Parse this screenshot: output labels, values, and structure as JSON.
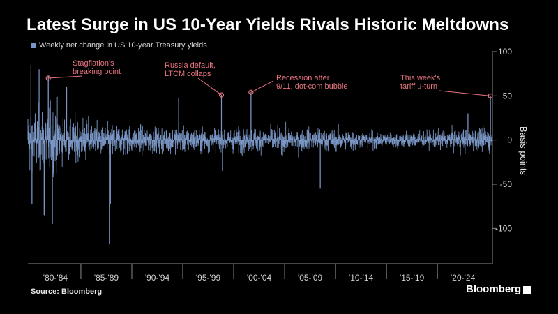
{
  "header": {
    "title": "Latest Surge in US 10-Year Yields Rivals Historic Meltdowns"
  },
  "legend": {
    "label": "Weekly net change in US 10-year Treasury yields"
  },
  "footer": {
    "source": "Source: Bloomberg",
    "brand": "Bloomberg"
  },
  "colors": {
    "bar": "#7a96c4",
    "annotation": "#e8737f",
    "background": "#000000"
  },
  "chart_data": {
    "type": "bar",
    "title": "Latest Surge in US 10-Year Yields Rivals Historic Meltdowns",
    "ylabel": "Basis points",
    "ylim": [
      -140,
      100
    ],
    "y_ticks": [
      100,
      50,
      0,
      -50,
      -100
    ],
    "y_axis_side": "right",
    "x_range": [
      1979.8,
      2025.4
    ],
    "x_ticks": [
      {
        "label": "'80-'84",
        "start": 1980
      },
      {
        "label": "'85-'89",
        "start": 1985
      },
      {
        "label": "'90-'94",
        "start": 1990
      },
      {
        "label": "'95-'99",
        "start": 1995
      },
      {
        "label": "'00-'04",
        "start": 2000
      },
      {
        "label": "'05-'09",
        "start": 2005
      },
      {
        "label": "'10-'14",
        "start": 2010
      },
      {
        "label": "'15-'19",
        "start": 2015
      },
      {
        "label": "'20-'24",
        "start": 2020
      }
    ],
    "series": [
      {
        "name": "Weekly net change in US 10-year Treasury yields",
        "frequency": "weekly",
        "notable_values": [
          {
            "x": 1980.1,
            "y": 85
          },
          {
            "x": 1980.2,
            "y": -72
          },
          {
            "x": 1980.9,
            "y": 80
          },
          {
            "x": 1981.4,
            "y": -85
          },
          {
            "x": 1981.8,
            "y": 72
          },
          {
            "x": 1982.2,
            "y": -95
          },
          {
            "x": 1983.6,
            "y": 60
          },
          {
            "x": 1987.8,
            "y": -118
          },
          {
            "x": 1987.9,
            "y": -72
          },
          {
            "x": 1994.6,
            "y": 48
          },
          {
            "x": 1998.8,
            "y": 51
          },
          {
            "x": 1998.9,
            "y": -35
          },
          {
            "x": 2001.7,
            "y": 54
          },
          {
            "x": 2008.5,
            "y": -55
          },
          {
            "x": 2023.0,
            "y": 30
          },
          {
            "x": 2025.2,
            "y": 50
          }
        ]
      }
    ],
    "annotations": [
      {
        "lines": [
          "Stagflation's",
          "breaking point"
        ],
        "x": 1981.8,
        "y": 70
      },
      {
        "lines": [
          "Russia default,",
          "LTCM collaps"
        ],
        "x": 1998.8,
        "y": 51
      },
      {
        "lines": [
          "Recession after",
          "9/11, dot-com bubble"
        ],
        "x": 2001.7,
        "y": 54
      },
      {
        "lines": [
          "This week's",
          "tariff u-turn"
        ],
        "x": 2025.2,
        "y": 50
      }
    ],
    "grid": false,
    "legend_position": "top-left"
  }
}
